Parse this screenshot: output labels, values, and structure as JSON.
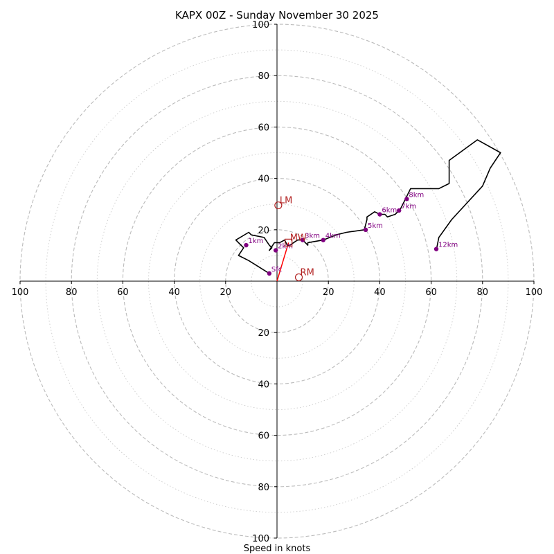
{
  "chart_data": {
    "type": "hodograph",
    "title": "KAPX 00Z - Sunday November 30 2025",
    "xlabel": "Speed in knots",
    "units": "knots",
    "axis_range": [
      -100,
      100
    ],
    "rings_major": [
      20,
      40,
      60,
      80,
      100
    ],
    "rings_minor": [
      10,
      30,
      50,
      70,
      90
    ],
    "x_tick_values": [
      -100,
      -80,
      -60,
      -40,
      -20,
      20,
      40,
      60,
      80,
      100
    ],
    "x_tick_labels": [
      "100",
      "80",
      "60",
      "40",
      "20",
      "20",
      "40",
      "60",
      "80",
      "100"
    ],
    "y_tick_values": [
      100,
      80,
      60,
      40,
      20,
      -20,
      -40,
      -60,
      -80,
      -100
    ],
    "y_tick_labels": [
      "100",
      "80",
      "60",
      "40",
      "20",
      "20",
      "40",
      "60",
      "80",
      "100"
    ],
    "hodograph_u": [
      -3,
      -11,
      -15,
      -13,
      -15,
      -16,
      -11,
      -10,
      -5,
      -3,
      -2,
      -3,
      -1,
      1,
      3,
      4,
      5,
      8,
      10,
      12,
      12,
      18,
      23,
      27,
      34,
      35,
      35,
      38,
      40,
      42,
      43,
      46,
      48,
      50,
      52,
      63,
      67,
      67,
      78,
      87,
      83,
      80,
      68,
      63,
      62
    ],
    "hodograph_v": [
      3,
      8,
      10,
      13,
      15,
      16,
      19,
      18,
      17,
      14,
      13,
      12,
      15,
      15,
      16,
      14,
      14,
      16,
      16,
      14,
      15,
      16,
      18,
      19,
      20,
      24,
      25,
      27,
      26,
      26,
      25,
      26,
      28,
      32,
      36,
      36,
      38,
      47,
      55,
      50,
      44,
      37,
      24,
      17,
      12
    ],
    "hodograph_color": "#000000",
    "height_markers": [
      {
        "label": "Sfc",
        "u": -3,
        "v": 3
      },
      {
        "label": "1km",
        "u": -12,
        "v": 14
      },
      {
        "label": "2km",
        "u": -0.5,
        "v": 12
      },
      {
        "label": "3km",
        "u": 10,
        "v": 16
      },
      {
        "label": "4km",
        "u": 18,
        "v": 16
      },
      {
        "label": "5km",
        "u": 34.5,
        "v": 20
      },
      {
        "label": "6km",
        "u": 40,
        "v": 26
      },
      {
        "label": "7km",
        "u": 47.5,
        "v": 27.5
      },
      {
        "label": "8km",
        "u": 50.5,
        "v": 32
      },
      {
        "label": "12km",
        "u": 62,
        "v": 12.5
      }
    ],
    "marker_color": "#800080",
    "storm_motions": [
      {
        "label": "LM",
        "u": 0.5,
        "v": 29.5,
        "shape": "circle"
      },
      {
        "label": "MW",
        "u": 4.5,
        "v": 15,
        "shape": "square"
      },
      {
        "label": "RM",
        "u": 8.5,
        "v": 1.5,
        "shape": "circle"
      }
    ],
    "storm_motion_color": "#b22222",
    "shear_vector": {
      "from": [
        0,
        0
      ],
      "to": [
        4.5,
        15
      ],
      "color": "#ff0000"
    }
  }
}
